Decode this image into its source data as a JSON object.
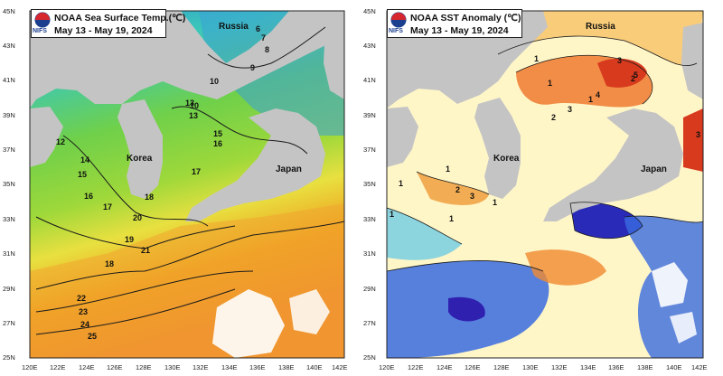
{
  "left_panel": {
    "title": "NOAA Sea Surface Temp.(℃)",
    "dates": "May 13 - May 19, 2024",
    "logo_text": "NIFS",
    "region_labels": [
      "Russia",
      "Korea",
      "Japan"
    ],
    "contour_labels": [
      "6",
      "7",
      "8",
      "9",
      "10",
      "10",
      "13",
      "13",
      "14",
      "15",
      "15",
      "16",
      "16",
      "17",
      "17",
      "18",
      "18",
      "19",
      "20",
      "21",
      "22",
      "23",
      "24",
      "25",
      "12"
    ],
    "colors": {
      "cold": "#2f8fd8",
      "cyan": "#3cc8b8",
      "green": "#6fd04a",
      "yellow": "#e8e040",
      "orange": "#f0a020",
      "warm": "#f08030",
      "land": "#c4c4c4"
    }
  },
  "right_panel": {
    "title": "NOAA SST Anomaly (℃)",
    "dates": "May 13 - May 19, 2024",
    "logo_text": "NIFS",
    "region_labels": [
      "Russia",
      "Korea",
      "Japan"
    ],
    "contour_labels": [
      "1",
      "1",
      "1",
      "1",
      "1",
      "1",
      "1",
      "2",
      "2",
      "2",
      "3",
      "3",
      "3",
      "3",
      "4",
      "5",
      "1"
    ],
    "colors": {
      "strong_warm": "#d83a1e",
      "warm": "#f08a30",
      "mild_warm": "#f8d870",
      "neutral": "#fff8d0",
      "mild_cold": "#80d0e0",
      "cold": "#3a6be0",
      "strong_cold": "#3020b0",
      "land": "#c4c4c4"
    }
  },
  "axes": {
    "lat_labels": [
      "45N",
      "43N",
      "41N",
      "39N",
      "37N",
      "35N",
      "33N",
      "31N",
      "29N",
      "27N",
      "25N"
    ],
    "lon_labels": [
      "120E",
      "122E",
      "124E",
      "126E",
      "128E",
      "130E",
      "132E",
      "134E",
      "136E",
      "138E",
      "140E",
      "142E"
    ]
  }
}
